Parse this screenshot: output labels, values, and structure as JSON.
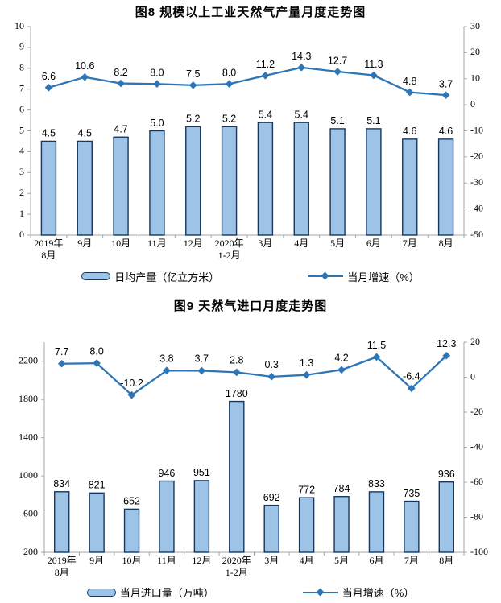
{
  "colors": {
    "bar_fill": "#9DC3E6",
    "bar_stroke": "#17375E",
    "line": "#2E75B6",
    "axis": "#A6A6A6",
    "label_text": "#000000"
  },
  "chart_data": [
    {
      "type": "bar",
      "combo": "bar+line",
      "title": "图8  规模以上工业天然气产量月度走势图",
      "categories": [
        [
          "2019年",
          "8月"
        ],
        [
          "9月"
        ],
        [
          "10月"
        ],
        [
          "11月"
        ],
        [
          "12月"
        ],
        [
          "2020年",
          "1-2月"
        ],
        [
          "3月"
        ],
        [
          "4月"
        ],
        [
          "5月"
        ],
        [
          "6月"
        ],
        [
          "7月"
        ],
        [
          "8月"
        ]
      ],
      "series": [
        {
          "name": "日均产量（亿立方米）",
          "kind": "bar",
          "axis": "left",
          "values": [
            4.5,
            4.5,
            4.7,
            5.0,
            5.2,
            5.2,
            5.4,
            5.4,
            5.1,
            5.1,
            4.6,
            4.6
          ],
          "labels": [
            "4.5",
            "4.5",
            "4.7",
            "5.0",
            "5.2",
            "5.2",
            "5.4",
            "5.4",
            "5.1",
            "5.1",
            "4.6",
            "4.6"
          ]
        },
        {
          "name": "当月增速（%）",
          "kind": "line",
          "axis": "right",
          "values": [
            6.6,
            10.6,
            8.2,
            8.0,
            7.5,
            8.0,
            11.2,
            14.3,
            12.7,
            11.3,
            4.8,
            3.7
          ],
          "labels": [
            "6.6",
            "10.6",
            "8.2",
            "8.0",
            "7.5",
            "8.0",
            "11.2",
            "14.3",
            "12.7",
            "11.3",
            "4.8",
            "3.7"
          ]
        }
      ],
      "left_axis": {
        "min": 0,
        "max": 10,
        "ticks": [
          0,
          1,
          2,
          3,
          4,
          5,
          6,
          7,
          8,
          9,
          10
        ]
      },
      "right_axis": {
        "min": -50,
        "max": 30,
        "ticks": [
          -50,
          -40,
          -30,
          -20,
          -10,
          0,
          10,
          20,
          30
        ]
      },
      "bar_baseline": 0,
      "grid": false,
      "legend_position": "bottom"
    },
    {
      "type": "bar",
      "combo": "bar+line",
      "title": "图9  天然气进口月度走势图",
      "categories": [
        [
          "2019年",
          "8月"
        ],
        [
          "9月"
        ],
        [
          "10月"
        ],
        [
          "11月"
        ],
        [
          "12月"
        ],
        [
          "2020年",
          "1-2月"
        ],
        [
          "3月"
        ],
        [
          "4月"
        ],
        [
          "5月"
        ],
        [
          "6月"
        ],
        [
          "7月"
        ],
        [
          "8月"
        ]
      ],
      "series": [
        {
          "name": "当月进口量（万吨）",
          "kind": "bar",
          "axis": "left",
          "values": [
            834,
            821,
            652,
            946,
            951,
            1780,
            692,
            772,
            784,
            833,
            735,
            936
          ],
          "labels": [
            "834",
            "821",
            "652",
            "946",
            "951",
            "1780",
            "692",
            "772",
            "784",
            "833",
            "735",
            "936"
          ]
        },
        {
          "name": "当月增速（%）",
          "kind": "line",
          "axis": "right",
          "values": [
            7.7,
            8.0,
            -10.2,
            3.8,
            3.7,
            2.8,
            0.3,
            1.3,
            4.2,
            11.5,
            -6.4,
            12.3
          ],
          "labels": [
            "7.7",
            "8.0",
            "-10.2",
            "3.8",
            "3.7",
            "2.8",
            "0.3",
            "1.3",
            "4.2",
            "11.5",
            "-6.4",
            "12.3"
          ]
        }
      ],
      "left_axis": {
        "min": 200,
        "max": 2400,
        "ticks": [
          200,
          600,
          1000,
          1400,
          1800,
          2200
        ]
      },
      "right_axis": {
        "min": -100,
        "max": 20,
        "ticks": [
          -100,
          -80,
          -60,
          -40,
          -20,
          0,
          20
        ]
      },
      "bar_baseline": 200,
      "grid": false,
      "legend_position": "bottom"
    }
  ]
}
